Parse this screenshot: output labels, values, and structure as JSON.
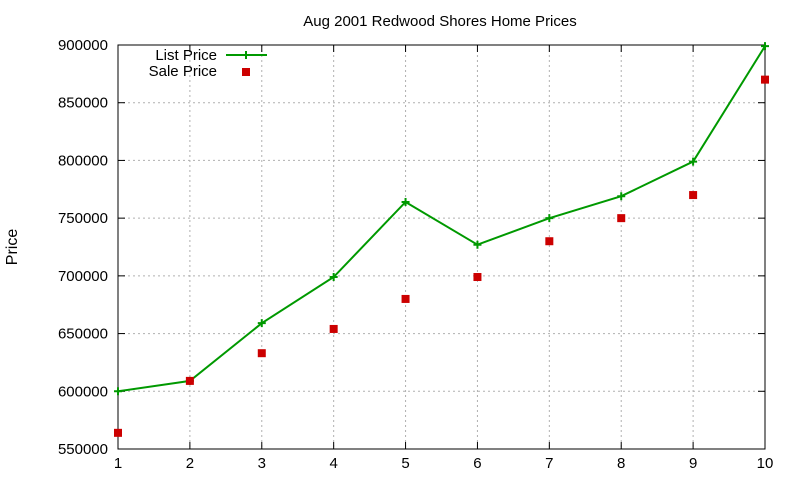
{
  "chart_data": {
    "type": "line",
    "title": "Aug 2001 Redwood Shores Home Prices",
    "xlabel": "",
    "ylabel": "Price",
    "xlim": [
      1,
      10
    ],
    "ylim": [
      550000,
      900000
    ],
    "x_ticks": [
      1,
      2,
      3,
      4,
      5,
      6,
      7,
      8,
      9,
      10
    ],
    "y_ticks": [
      550000,
      600000,
      650000,
      700000,
      750000,
      800000,
      850000,
      900000
    ],
    "grid": true,
    "legend_position": "top-left",
    "x": [
      1,
      2,
      3,
      4,
      5,
      6,
      7,
      8,
      9,
      10
    ],
    "series": [
      {
        "name": "List Price",
        "style": "lines+points",
        "color": "#009900",
        "values": [
          600000,
          609000,
          659000,
          699000,
          764000,
          727000,
          750000,
          769000,
          799000,
          899000
        ]
      },
      {
        "name": "Sale Price",
        "style": "points",
        "color": "#cc0000",
        "values": [
          564000,
          609000,
          633000,
          654000,
          680000,
          699000,
          730000,
          750000,
          770000,
          870000
        ]
      }
    ]
  }
}
